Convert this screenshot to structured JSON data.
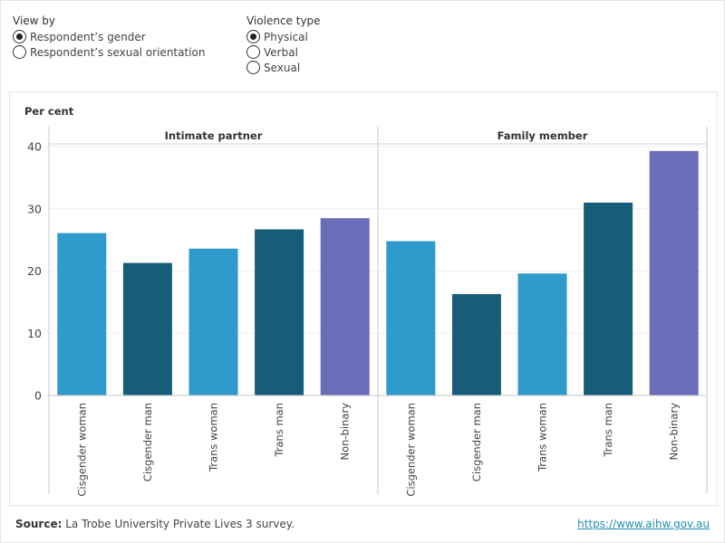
{
  "filters": {
    "view_by": {
      "title": "View by",
      "options": [
        "Respondent’s gender",
        "Respondent’s sexual orientation"
      ],
      "selected": 0
    },
    "violence_type": {
      "title": "Violence type",
      "options": [
        "Physical",
        "Verbal",
        "Sexual"
      ],
      "selected": 0
    }
  },
  "chart_data": {
    "type": "bar",
    "ylabel": "Per cent",
    "ylim": [
      0,
      40
    ],
    "yticks": [
      0,
      10,
      20,
      30,
      40
    ],
    "grid": true,
    "categories": [
      "Cisgender woman",
      "Cisgender man",
      "Trans woman",
      "Trans man",
      "Non-binary"
    ],
    "panels": [
      {
        "title": "Intimate partner",
        "values": [
          26.1,
          21.3,
          23.6,
          26.7,
          28.5
        ]
      },
      {
        "title": "Family member",
        "values": [
          24.8,
          16.3,
          19.6,
          31.0,
          39.3
        ]
      }
    ],
    "colors": {
      "Cisgender woman": "#2e9bcc",
      "Cisgender man": "#175d7a",
      "Trans woman": "#2e9bcc",
      "Trans man": "#175d7a",
      "Non-binary": "#6a6eba"
    }
  },
  "footer": {
    "source_label": "Source:",
    "source_text": "La Trobe University Private Lives 3 survey.",
    "link": "https://www.aihw.gov.au"
  }
}
